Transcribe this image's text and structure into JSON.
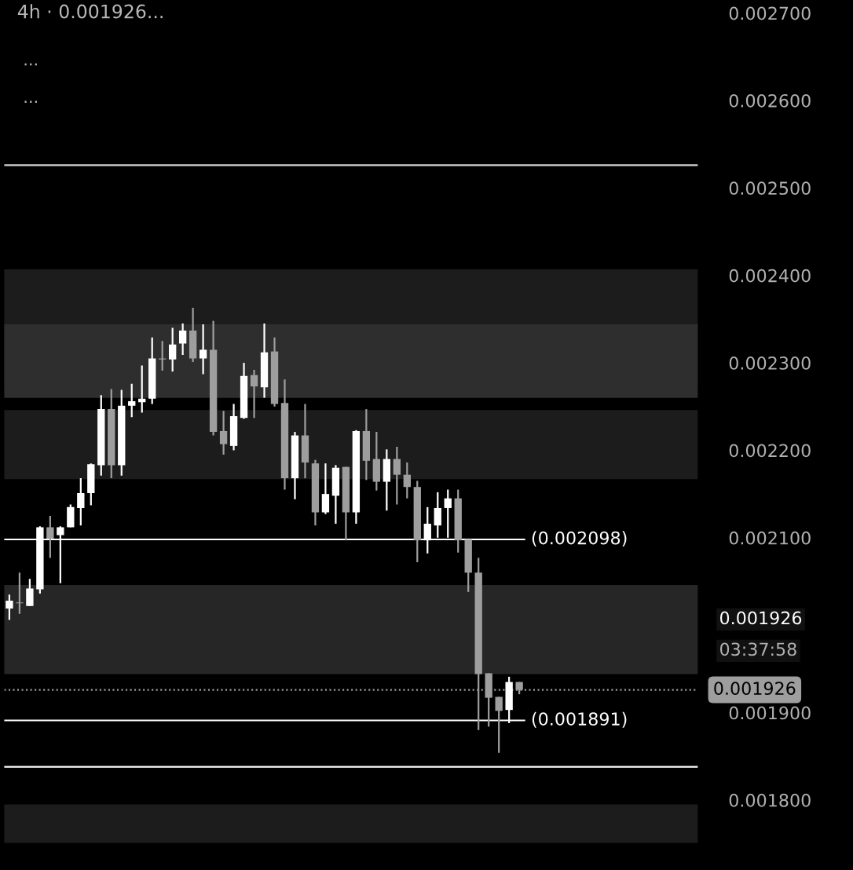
{
  "chart_data": {
    "type": "candlestick",
    "title": "4h · 0.001926...",
    "categories": [
      null,
      null,
      null,
      null,
      null,
      null,
      null,
      null,
      null,
      null,
      null,
      null,
      null,
      null,
      null,
      null,
      null,
      null,
      null,
      null,
      null,
      null,
      null,
      null,
      null,
      null,
      null,
      null,
      null,
      null,
      null,
      null,
      null,
      null,
      null,
      null,
      null,
      null,
      null,
      null,
      null,
      null,
      null,
      null,
      null,
      null,
      null,
      null,
      null,
      null,
      null,
      null,
      null,
      null,
      null,
      null,
      null,
      null,
      null,
      null,
      null,
      null,
      null,
      null,
      null,
      null,
      null,
      null
    ],
    "ohlc": [
      [
        0.002019,
        0.002035,
        0.002006,
        0.002028
      ],
      [
        0.002026,
        0.00206,
        0.002013,
        0.002025
      ],
      [
        0.002022,
        0.002053,
        0.002022,
        0.002042
      ],
      [
        0.002041,
        0.002113,
        0.002036,
        0.002112
      ],
      [
        0.002112,
        0.002125,
        0.002077,
        0.002099
      ],
      [
        0.002103,
        0.002113,
        0.002048,
        0.002112
      ],
      [
        0.002112,
        0.002138,
        0.002112,
        0.002135
      ],
      [
        0.002134,
        0.002168,
        0.002114,
        0.002151
      ],
      [
        0.002151,
        0.002185,
        0.002137,
        0.002184
      ],
      [
        0.002183,
        0.002263,
        0.002171,
        0.002247
      ],
      [
        0.002247,
        0.00227,
        0.002168,
        0.002183
      ],
      [
        0.002183,
        0.002269,
        0.002171,
        0.002251
      ],
      [
        0.002251,
        0.002276,
        0.002238,
        0.002256
      ],
      [
        0.002255,
        0.002297,
        0.002243,
        0.002259
      ],
      [
        0.002259,
        0.002329,
        0.002253,
        0.002305
      ],
      [
        0.002305,
        0.002325,
        0.002291,
        0.002304
      ],
      [
        0.002304,
        0.00234,
        0.00229,
        0.002321
      ],
      [
        0.002322,
        0.002345,
        0.002309,
        0.002337
      ],
      [
        0.002337,
        0.002363,
        0.002301,
        0.002305
      ],
      [
        0.002305,
        0.002344,
        0.002287,
        0.002315
      ],
      [
        0.002315,
        0.002348,
        0.002217,
        0.002221
      ],
      [
        0.002222,
        0.002245,
        0.002195,
        0.002207
      ],
      [
        0.002205,
        0.002253,
        0.0022,
        0.002239
      ],
      [
        0.002237,
        0.0023,
        0.002236,
        0.002285
      ],
      [
        0.002286,
        0.002292,
        0.002237,
        0.002273
      ],
      [
        0.002272,
        0.002345,
        0.00226,
        0.002312
      ],
      [
        0.002313,
        0.002329,
        0.00225,
        0.002253
      ],
      [
        0.002254,
        0.002281,
        0.002155,
        0.002168
      ],
      [
        0.002168,
        0.002221,
        0.002144,
        0.002217
      ],
      [
        0.002217,
        0.002253,
        0.002168,
        0.002186
      ],
      [
        0.002185,
        0.002189,
        0.002114,
        0.002129
      ],
      [
        0.002129,
        0.002185,
        0.002127,
        0.00215
      ],
      [
        0.002148,
        0.002183,
        0.002116,
        0.00218
      ],
      [
        0.002181,
        0.002181,
        0.002097,
        0.002129
      ],
      [
        0.002129,
        0.002223,
        0.002116,
        0.002222
      ],
      [
        0.002222,
        0.002247,
        0.002166,
        0.002188
      ],
      [
        0.00219,
        0.002221,
        0.002154,
        0.002164
      ],
      [
        0.002164,
        0.002201,
        0.002131,
        0.00219
      ],
      [
        0.00219,
        0.002204,
        0.002138,
        0.002172
      ],
      [
        0.002172,
        0.002186,
        0.002145,
        0.002158
      ],
      [
        0.002158,
        0.002165,
        0.002072,
        0.002097
      ],
      [
        0.002097,
        0.002135,
        0.002082,
        0.002116
      ],
      [
        0.002114,
        0.002152,
        0.0021,
        0.002134
      ],
      [
        0.002134,
        0.002155,
        0.0021,
        0.002145
      ],
      [
        0.002145,
        0.002155,
        0.002083,
        0.002097
      ],
      [
        0.002098,
        0.002098,
        0.002038,
        0.00206
      ],
      [
        0.00206,
        0.002077,
        0.00188,
        0.001944
      ],
      [
        0.001945,
        0.001945,
        0.001884,
        0.001917
      ],
      [
        0.001918,
        0.001918,
        0.001854,
        0.001902
      ],
      [
        0.001903,
        0.001941,
        0.001888,
        0.001935
      ],
      [
        0.001935,
        0.001935,
        0.001921,
        0.001926
      ],
      null,
      null,
      null,
      null,
      null,
      null,
      null,
      null,
      null,
      null,
      null,
      null,
      null,
      null,
      null,
      null,
      null
    ],
    "colors": [
      "#ffffff",
      "#9e9e9e",
      "#ffffff",
      "#ffffff",
      "#9e9e9e",
      "#ffffff",
      "#ffffff",
      "#ffffff",
      "#ffffff",
      "#ffffff",
      "#9e9e9e",
      "#ffffff",
      "#ffffff",
      "#ffffff",
      "#ffffff",
      "#9e9e9e",
      "#ffffff",
      "#ffffff",
      "#9e9e9e",
      "#ffffff",
      "#9e9e9e",
      "#9e9e9e",
      "#ffffff",
      "#ffffff",
      "#9e9e9e",
      "#ffffff",
      "#9e9e9e",
      "#9e9e9e",
      "#ffffff",
      "#9e9e9e",
      "#9e9e9e",
      "#ffffff",
      "#ffffff",
      "#9e9e9e",
      "#ffffff",
      "#9e9e9e",
      "#9e9e9e",
      "#ffffff",
      "#9e9e9e",
      "#9e9e9e",
      "#9e9e9e",
      "#ffffff",
      "#ffffff",
      "#ffffff",
      "#9e9e9e",
      "#9e9e9e",
      "#9e9e9e",
      "#9e9e9e",
      "#9e9e9e",
      "#ffffff",
      "#9e9e9e",
      null,
      null,
      null,
      null,
      null,
      null,
      null,
      null,
      null,
      null,
      null,
      null,
      null,
      null,
      null,
      null,
      null
    ],
    "ylim": [
      0.00172,
      0.0027
    ],
    "yticks": [
      {
        "value": 0.0018,
        "label": "0.001800"
      },
      {
        "value": 0.0019,
        "label": "0.001900"
      },
      {
        "value": 0.0021,
        "label": "0.002100"
      },
      {
        "value": 0.0022,
        "label": "0.002200"
      },
      {
        "value": 0.0023,
        "label": "0.002300"
      },
      {
        "value": 0.0024,
        "label": "0.002400"
      },
      {
        "value": 0.0025,
        "label": "0.002500"
      },
      {
        "value": 0.0026,
        "label": "0.002600"
      },
      {
        "value": 0.0027,
        "label": "0.002700"
      }
    ],
    "tick_labels": "y",
    "grid": false,
    "bands": [
      {
        "axis": "y",
        "from": 0.002276,
        "to": 0.002407,
        "color": "#1c1c1c"
      },
      {
        "axis": "y",
        "from": 0.00226,
        "to": 0.002344,
        "color": "#2e2e2e"
      },
      {
        "axis": "y",
        "from": 0.002167,
        "to": 0.002246,
        "color": "#1c1c1c"
      },
      {
        "axis": "y",
        "from": 0.001944,
        "to": 0.002046,
        "color": "#262626"
      },
      {
        "axis": "y",
        "from": 0.001751,
        "to": 0.001795,
        "color": "#1c1c1c"
      }
    ],
    "ref_lines": [
      {
        "axis": "y",
        "value": 0.002526,
        "color": "#d0d0d0"
      },
      {
        "axis": "y",
        "value": 0.002098,
        "label": "(0.002098)",
        "color": "#ffffff"
      },
      {
        "axis": "y",
        "value": 0.001891,
        "label": "(0.001891)",
        "color": "#ffffff"
      },
      {
        "axis": "y",
        "value": 0.001838,
        "color": "#ffffff"
      },
      {
        "axis": "y",
        "value": 0.001926,
        "label": "0.001926",
        "color": "#9e9e9e",
        "line_style": "dotted"
      }
    ],
    "annotations": [
      "...",
      "...",
      "0.001926",
      "03:37:58"
    ]
  }
}
